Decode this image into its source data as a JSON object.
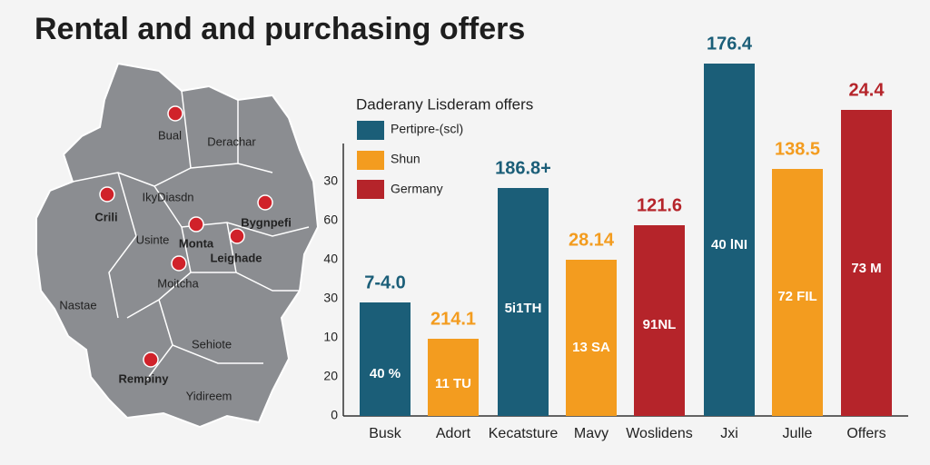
{
  "title": "Rental and and purchasing offers",
  "map": {
    "labels": [
      "Bual",
      "Derachar",
      "Crili",
      "IkyDiasdn",
      "Usinte",
      "Monta",
      "Bygnpefi",
      "Leighade",
      "Moitcha",
      "Nastae",
      "Sehiote",
      "Rempiny",
      "Yidireem"
    ]
  },
  "legend": {
    "title": "Daderany Lisderam offers",
    "items": [
      "Pertipre-(scl)",
      "Shun",
      "Germany"
    ]
  },
  "axis": {
    "tick_labels": [
      "0",
      "20",
      "10",
      "30",
      "40",
      "60",
      "30"
    ]
  },
  "bars": [
    {
      "category": "Busk",
      "top_label": "7-4.0",
      "inner_label": "40 %"
    },
    {
      "category": "Adort",
      "top_label": "214.1",
      "inner_label": "11 TU"
    },
    {
      "category": "Kecatsture",
      "top_label": "186.8+",
      "inner_label": "5i1TH"
    },
    {
      "category": "Mavy",
      "top_label": "28.14",
      "inner_label": "13 SA"
    },
    {
      "category": "Woslidens",
      "top_label": "121.6",
      "inner_label": "91NL"
    },
    {
      "category": "Jxi",
      "top_label": "176.4",
      "inner_label": "40 lNI"
    },
    {
      "category": "Julle",
      "top_label": "138.5",
      "inner_label": "72 FIL"
    },
    {
      "category": "Offers",
      "top_label": "24.4",
      "inner_label": "73 M"
    }
  ]
}
